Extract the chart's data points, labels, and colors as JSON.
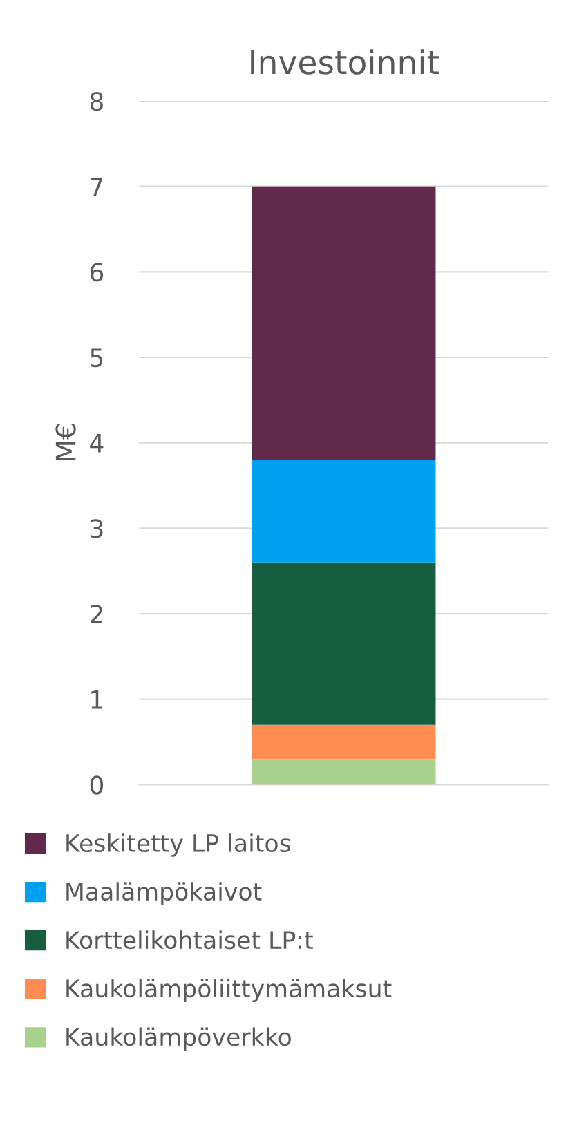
{
  "chart_data": {
    "type": "bar",
    "title": "Investoinnit",
    "ylabel": "M€",
    "categories": [
      null
    ],
    "stacked": true,
    "series": [
      {
        "name": "Kaukolämpöverkko",
        "color": "#a9d18e",
        "values": [
          0.3
        ]
      },
      {
        "name": "Kaukolämpöliittymämaksut",
        "color": "#ff8c52",
        "values": [
          0.4
        ]
      },
      {
        "name": "Korttelikohtaiset LP:t",
        "color": "#175e40",
        "values": [
          1.9
        ]
      },
      {
        "name": "Maalämpökaivot",
        "color": "#00a0f0",
        "values": [
          1.2
        ]
      },
      {
        "name": "Keskitetty LP laitos",
        "color": "#622a4a",
        "values": [
          3.2
        ]
      }
    ],
    "ylim": [
      0,
      8
    ],
    "yticks": [
      0,
      1,
      2,
      3,
      4,
      5,
      6,
      7,
      8
    ],
    "grid": "y",
    "legend": "bottom"
  }
}
